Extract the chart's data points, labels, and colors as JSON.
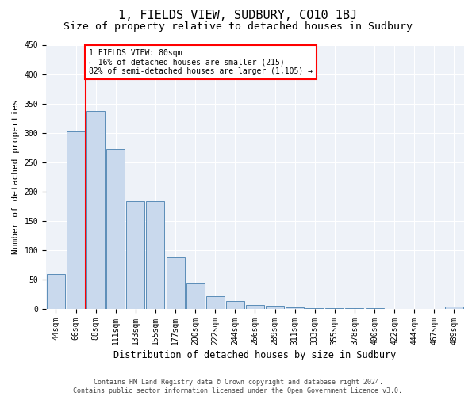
{
  "title": "1, FIELDS VIEW, SUDBURY, CO10 1BJ",
  "subtitle": "Size of property relative to detached houses in Sudbury",
  "xlabel": "Distribution of detached houses by size in Sudbury",
  "ylabel": "Number of detached properties",
  "bar_labels": [
    "44sqm",
    "66sqm",
    "88sqm",
    "111sqm",
    "133sqm",
    "155sqm",
    "177sqm",
    "200sqm",
    "222sqm",
    "244sqm",
    "266sqm",
    "289sqm",
    "311sqm",
    "333sqm",
    "355sqm",
    "378sqm",
    "400sqm",
    "422sqm",
    "444sqm",
    "467sqm",
    "489sqm"
  ],
  "bar_values": [
    60,
    302,
    338,
    273,
    183,
    183,
    88,
    44,
    22,
    14,
    7,
    5,
    3,
    2,
    2,
    1,
    1,
    0,
    0,
    0,
    4
  ],
  "bar_color": "#c9d9ed",
  "bar_edge_color": "#5b8db8",
  "vline_x": 1.5,
  "vline_color": "red",
  "annotation_text": "1 FIELDS VIEW: 80sqm\n← 16% of detached houses are smaller (215)\n82% of semi-detached houses are larger (1,105) →",
  "annotation_box_color": "white",
  "annotation_box_edge": "red",
  "ylim": [
    0,
    450
  ],
  "yticks": [
    0,
    50,
    100,
    150,
    200,
    250,
    300,
    350,
    400,
    450
  ],
  "footnote": "Contains HM Land Registry data © Crown copyright and database right 2024.\nContains public sector information licensed under the Open Government Licence v3.0.",
  "bg_color": "#eef2f8",
  "title_fontsize": 11,
  "subtitle_fontsize": 9.5,
  "xlabel_fontsize": 8.5,
  "ylabel_fontsize": 8,
  "tick_fontsize": 7,
  "annotation_fontsize": 7,
  "footnote_fontsize": 6
}
